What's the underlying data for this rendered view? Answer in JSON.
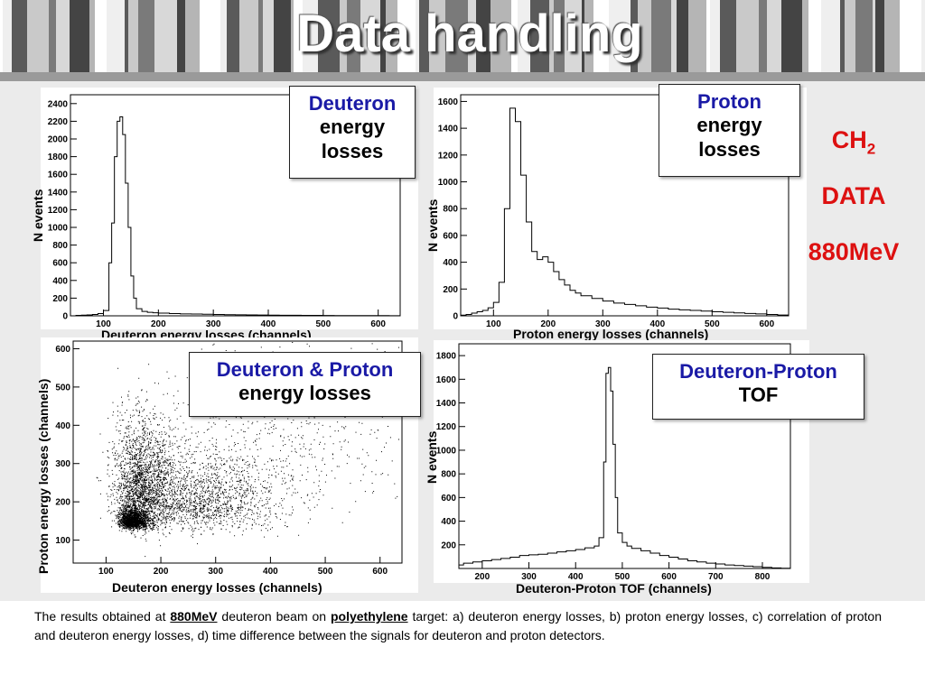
{
  "slide": {
    "title": "Data handling",
    "caption": {
      "part1": "The results obtained at ",
      "beam_energy": "880MeV",
      "part2": " deuteron beam on ",
      "target": "polyethylene",
      "part3": " target: a) deuteron energy losses, b) proton energy losses, c) correlation of proton and deuteron energy losses, d) time difference between the signals for  deuteron and proton detectors."
    },
    "side_labels": {
      "target_main": "CH",
      "target_sub": "2",
      "data_label": "DATA",
      "energy": "880MeV"
    },
    "colors": {
      "red": "#dd1111",
      "blue": "#1a1aa6"
    }
  },
  "boxes": {
    "deuteron": {
      "line1": "Deuteron",
      "line2": "energy",
      "line3": "losses"
    },
    "proton": {
      "line1": "Proton",
      "line2": "energy",
      "line3": "losses"
    },
    "corr": {
      "line1": "Deuteron & Proton",
      "line2": "energy losses"
    },
    "tof": {
      "line1": "Deuteron-Proton",
      "line2": "TOF"
    }
  },
  "chart_data": [
    {
      "type": "histogram",
      "xlabel": "Deuteron energy losses (channels)",
      "ylabel": "N events",
      "xlim": [
        40,
        640
      ],
      "ylim": [
        0,
        2500
      ],
      "xticks": [
        100,
        200,
        300,
        400,
        500,
        600
      ],
      "yticks": [
        0,
        200,
        400,
        600,
        800,
        1000,
        1200,
        1400,
        1600,
        1800,
        2000,
        2200,
        2400
      ],
      "bin_edges": [
        40,
        50,
        60,
        70,
        80,
        90,
        100,
        110,
        115,
        120,
        125,
        130,
        135,
        140,
        145,
        150,
        155,
        160,
        170,
        180,
        190,
        200,
        220,
        240,
        260,
        280,
        300,
        320,
        340,
        360,
        380,
        400,
        420,
        440,
        460,
        480,
        500,
        520,
        540,
        560,
        580,
        600,
        620,
        640
      ],
      "counts": [
        0,
        5,
        8,
        10,
        15,
        25,
        60,
        600,
        1050,
        1800,
        2200,
        2250,
        2050,
        1500,
        1000,
        450,
        200,
        80,
        50,
        40,
        35,
        30,
        25,
        22,
        20,
        18,
        15,
        13,
        11,
        10,
        9,
        8,
        7,
        6,
        5,
        5,
        4,
        3,
        3,
        2,
        2,
        2,
        1
      ]
    },
    {
      "type": "histogram",
      "xlabel": "Proton energy losses (channels)",
      "ylabel": "N events",
      "xlim": [
        40,
        640
      ],
      "ylim": [
        0,
        1650
      ],
      "xticks": [
        100,
        200,
        300,
        400,
        500,
        600
      ],
      "yticks": [
        0,
        200,
        400,
        600,
        800,
        1000,
        1200,
        1400,
        1600
      ],
      "bin_edges": [
        40,
        50,
        60,
        70,
        80,
        90,
        100,
        110,
        120,
        130,
        140,
        150,
        160,
        170,
        180,
        190,
        200,
        210,
        220,
        230,
        240,
        250,
        260,
        280,
        300,
        320,
        340,
        360,
        380,
        400,
        420,
        440,
        460,
        480,
        500,
        520,
        540,
        560,
        580,
        600,
        620,
        640
      ],
      "counts": [
        5,
        10,
        20,
        30,
        40,
        60,
        100,
        250,
        800,
        1550,
        1450,
        1050,
        700,
        480,
        420,
        440,
        400,
        330,
        270,
        230,
        190,
        170,
        150,
        130,
        110,
        95,
        85,
        75,
        65,
        58,
        50,
        45,
        40,
        35,
        30,
        26,
        22,
        18,
        14,
        10,
        6
      ]
    },
    {
      "type": "scatter",
      "xlabel": "Deuteron energy losses (channels)",
      "ylabel": "Proton energy losses (channels)",
      "xlim": [
        40,
        640
      ],
      "ylim": [
        40,
        620
      ],
      "xticks": [
        100,
        200,
        300,
        400,
        500,
        600
      ],
      "yticks": [
        100,
        200,
        300,
        400,
        500,
        600
      ],
      "clusters": [
        {
          "x": 140,
          "y": 145,
          "sx": 18,
          "sy": 18,
          "n": 1500
        },
        {
          "x": 150,
          "y": 210,
          "sx": 40,
          "sy": 100,
          "n": 2300
        },
        {
          "x": 250,
          "y": 180,
          "sx": 85,
          "sy": 65,
          "n": 1300
        },
        {
          "x": 340,
          "y": 330,
          "sx": 170,
          "sy": 160,
          "n": 700
        }
      ]
    },
    {
      "type": "histogram",
      "xlabel": "Deuteron-Proton TOF (channels)",
      "ylabel": "N events",
      "xlim": [
        150,
        860
      ],
      "ylim": [
        0,
        1900
      ],
      "xticks": [
        200,
        300,
        400,
        500,
        600,
        700,
        800
      ],
      "yticks": [
        200,
        400,
        600,
        800,
        1000,
        1200,
        1400,
        1600,
        1800
      ],
      "bin_edges": [
        150,
        160,
        180,
        200,
        220,
        240,
        260,
        280,
        300,
        320,
        340,
        360,
        380,
        400,
        420,
        440,
        450,
        460,
        465,
        470,
        475,
        480,
        485,
        490,
        500,
        510,
        520,
        540,
        560,
        580,
        600,
        620,
        640,
        660,
        680,
        700,
        720,
        740,
        760,
        780,
        800,
        820,
        840,
        860
      ],
      "counts": [
        30,
        45,
        55,
        65,
        75,
        85,
        95,
        110,
        115,
        120,
        130,
        140,
        150,
        160,
        175,
        190,
        260,
        900,
        1650,
        1700,
        1500,
        1050,
        600,
        300,
        220,
        190,
        170,
        150,
        130,
        110,
        95,
        80,
        65,
        55,
        45,
        38,
        30,
        25,
        20,
        15,
        10,
        5,
        2
      ]
    }
  ]
}
